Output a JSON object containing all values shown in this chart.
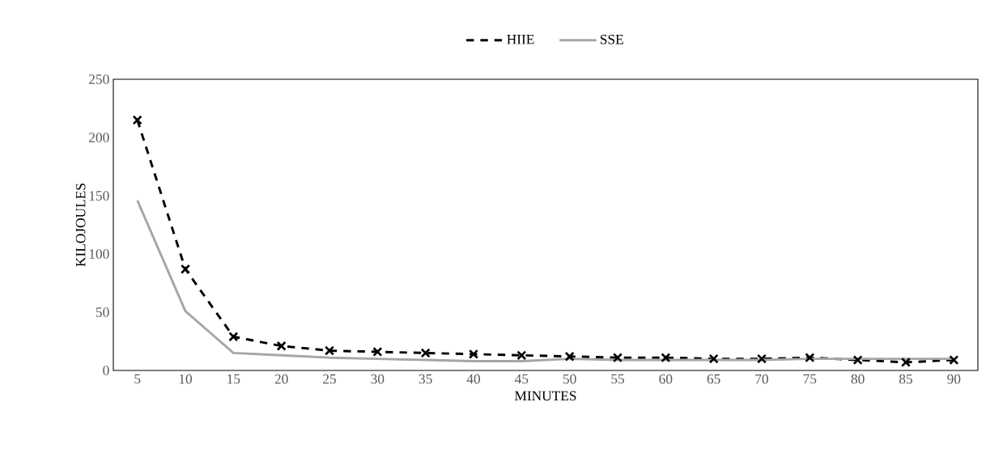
{
  "chart_data": {
    "type": "line",
    "xlabel": "MINUTES",
    "ylabel": "KILOJOULES",
    "categories": [
      "5",
      "10",
      "15",
      "20",
      "25",
      "30",
      "35",
      "40",
      "45",
      "50",
      "55",
      "60",
      "65",
      "70",
      "75",
      "80",
      "85",
      "90"
    ],
    "series": [
      {
        "name": "HIIE",
        "color": "#000000",
        "line_style": "dashed",
        "marker": "cross",
        "values": [
          215,
          87,
          29,
          21,
          17,
          16,
          15,
          14,
          13,
          12,
          11,
          11,
          10,
          10,
          11,
          9,
          7,
          9
        ]
      },
      {
        "name": "SSE",
        "color": "#a6a6a6",
        "line_style": "solid",
        "marker": "none",
        "values": [
          146,
          51,
          15,
          13,
          11,
          10,
          9,
          8,
          8,
          10,
          9,
          9,
          9,
          9,
          10,
          10,
          10,
          10
        ]
      }
    ],
    "ylim": [
      0,
      250
    ],
    "yticks": [
      0,
      50,
      100,
      150,
      200,
      250
    ],
    "grid": false,
    "legend": "top"
  }
}
